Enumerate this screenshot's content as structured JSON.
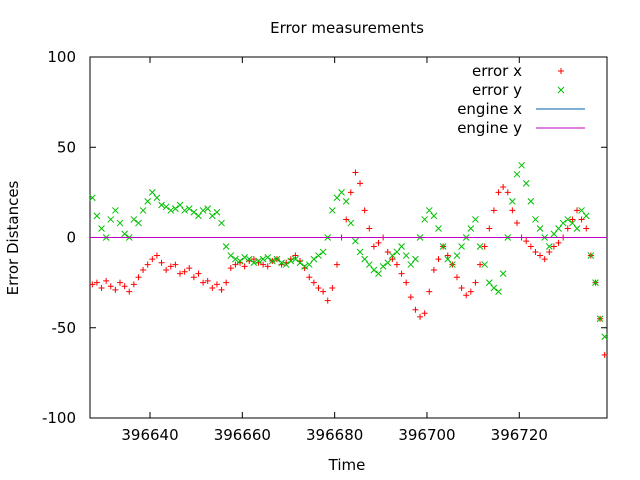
{
  "chart_data": {
    "type": "scatter",
    "title": "Error measurements",
    "xlabel": "Time",
    "ylabel": "Error Distances",
    "xlim": [
      396627,
      396739
    ],
    "ylim": [
      -100,
      100
    ],
    "x_ticks": [
      396640,
      396660,
      396680,
      396700,
      396720
    ],
    "y_ticks": [
      -100,
      -50,
      0,
      50,
      100
    ],
    "grid": false,
    "legend_position": "top-right",
    "series": [
      {
        "name": "error x",
        "marker": "plus",
        "color": "#ff0000",
        "x": [
          396627.5,
          396628.5,
          396629.5,
          396630.5,
          396631.5,
          396632.5,
          396633.5,
          396634.5,
          396635.5,
          396636.5,
          396637.5,
          396638.5,
          396639.5,
          396640.5,
          396641.5,
          396642.5,
          396643.5,
          396644.5,
          396645.5,
          396646.5,
          396647.5,
          396648.5,
          396649.5,
          396650.5,
          396651.5,
          396652.5,
          396653.5,
          396654.5,
          396655.5,
          396656.5,
          396657.5,
          396658.5,
          396659.5,
          396660.5,
          396661.5,
          396662.5,
          396663.5,
          396664.5,
          396665.5,
          396666.5,
          396667.5,
          396668.5,
          396669.5,
          396670.5,
          396671.5,
          396672.5,
          396673.5,
          396674.5,
          396675.5,
          396676.5,
          396677.5,
          396678.5,
          396679.5,
          396680.5,
          396681.5,
          396682.5,
          396683.5,
          396684.5,
          396685.5,
          396686.5,
          396687.5,
          396688.5,
          396689.5,
          396690.5,
          396691.5,
          396692.5,
          396693.5,
          396694.5,
          396695.5,
          396696.5,
          396697.5,
          396698.5,
          396699.5,
          396700.5,
          396701.5,
          396702.5,
          396703.5,
          396704.5,
          396705.5,
          396706.5,
          396707.5,
          396708.5,
          396709.5,
          396710.5,
          396711.5,
          396712.5,
          396713.5,
          396714.5,
          396715.5,
          396716.5,
          396717.5,
          396718.5,
          396719.5,
          396720.5,
          396721.5,
          396722.5,
          396723.5,
          396724.5,
          396725.5,
          396726.5,
          396727.5,
          396728.5,
          396729.5,
          396730.5,
          396731.5,
          396732.5,
          396733.5,
          396734.5,
          396735.5,
          396736.5,
          396737.5,
          396738.5
        ],
        "y": [
          -26,
          -25,
          -28,
          -24,
          -27,
          -29,
          -25,
          -27,
          -30,
          -26,
          -22,
          -18,
          -15,
          -12,
          -10,
          -14,
          -18,
          -16,
          -15,
          -20,
          -19,
          -17,
          -22,
          -20,
          -25,
          -24,
          -28,
          -26,
          -29,
          -25,
          -17,
          -15,
          -14,
          -16,
          -13,
          -12,
          -14,
          -15,
          -16,
          -13,
          -12,
          -15,
          -14,
          -12,
          -10,
          -13,
          -17,
          -22,
          -25,
          -28,
          -30,
          -35,
          -28,
          -15,
          0,
          10,
          25,
          36,
          30,
          15,
          5,
          -5,
          -3,
          0,
          -8,
          -12,
          -15,
          -20,
          -25,
          -33,
          -40,
          -44,
          -42,
          -30,
          -18,
          -12,
          -5,
          -10,
          -15,
          -22,
          -28,
          -32,
          -30,
          -25,
          -15,
          -5,
          5,
          15,
          25,
          28,
          25,
          15,
          8,
          0,
          -2,
          -5,
          -8,
          -10,
          -12,
          -8,
          -5,
          -3,
          0,
          5,
          10,
          15,
          10,
          5,
          -10,
          -25,
          -45,
          -65
        ]
      },
      {
        "name": "error y",
        "marker": "cross",
        "color": "#00c000",
        "x": [
          396627.5,
          396628.5,
          396629.5,
          396630.5,
          396631.5,
          396632.5,
          396633.5,
          396634.5,
          396635.5,
          396636.5,
          396637.5,
          396638.5,
          396639.5,
          396640.5,
          396641.5,
          396642.5,
          396643.5,
          396644.5,
          396645.5,
          396646.5,
          396647.5,
          396648.5,
          396649.5,
          396650.5,
          396651.5,
          396652.5,
          396653.5,
          396654.5,
          396655.5,
          396656.5,
          396657.5,
          396658.5,
          396659.5,
          396660.5,
          396661.5,
          396662.5,
          396663.5,
          396664.5,
          396665.5,
          396666.5,
          396667.5,
          396668.5,
          396669.5,
          396670.5,
          396671.5,
          396672.5,
          396673.5,
          396674.5,
          396675.5,
          396676.5,
          396677.5,
          396678.5,
          396679.5,
          396680.5,
          396681.5,
          396682.5,
          396683.5,
          396684.5,
          396685.5,
          396686.5,
          396687.5,
          396688.5,
          396689.5,
          396690.5,
          396691.5,
          396692.5,
          396693.5,
          396694.5,
          396695.5,
          396696.5,
          396697.5,
          396698.5,
          396699.5,
          396700.5,
          396701.5,
          396702.5,
          396703.5,
          396704.5,
          396705.5,
          396706.5,
          396707.5,
          396708.5,
          396709.5,
          396710.5,
          396711.5,
          396712.5,
          396713.5,
          396714.5,
          396715.5,
          396716.5,
          396717.5,
          396718.5,
          396719.5,
          396720.5,
          396721.5,
          396722.5,
          396723.5,
          396724.5,
          396725.5,
          396726.5,
          396727.5,
          396728.5,
          396729.5,
          396730.5,
          396731.5,
          396732.5,
          396733.5,
          396734.5,
          396735.5,
          396736.5,
          396737.5,
          396738.5
        ],
        "y": [
          22,
          12,
          5,
          0,
          10,
          15,
          8,
          2,
          0,
          10,
          8,
          15,
          20,
          25,
          22,
          18,
          17,
          15,
          16,
          18,
          15,
          16,
          14,
          12,
          15,
          16,
          12,
          14,
          8,
          -5,
          -10,
          -12,
          -13,
          -11,
          -12,
          -14,
          -13,
          -12,
          -11,
          -13,
          -12,
          -14,
          -15,
          -13,
          -12,
          -14,
          -16,
          -15,
          -12,
          -10,
          -8,
          0,
          15,
          22,
          25,
          20,
          8,
          -2,
          -8,
          -12,
          -15,
          -18,
          -20,
          -16,
          -14,
          -10,
          -8,
          -5,
          -10,
          -15,
          -12,
          0,
          10,
          15,
          12,
          5,
          -5,
          -12,
          -15,
          -10,
          -5,
          0,
          5,
          10,
          -5,
          -15,
          -25,
          -28,
          -30,
          -20,
          0,
          20,
          35,
          40,
          30,
          20,
          10,
          5,
          0,
          -5,
          2,
          5,
          8,
          10,
          8,
          5,
          15,
          12,
          -10,
          -25,
          -45,
          -55
        ]
      },
      {
        "name": "engine x",
        "marker": "line",
        "color": "#0060ad",
        "x": [
          396627,
          396739
        ],
        "y": [
          0,
          0
        ]
      },
      {
        "name": "engine y",
        "marker": "line",
        "color": "#c000c0",
        "x": [
          396627,
          396739
        ],
        "y": [
          0,
          0
        ]
      }
    ]
  }
}
